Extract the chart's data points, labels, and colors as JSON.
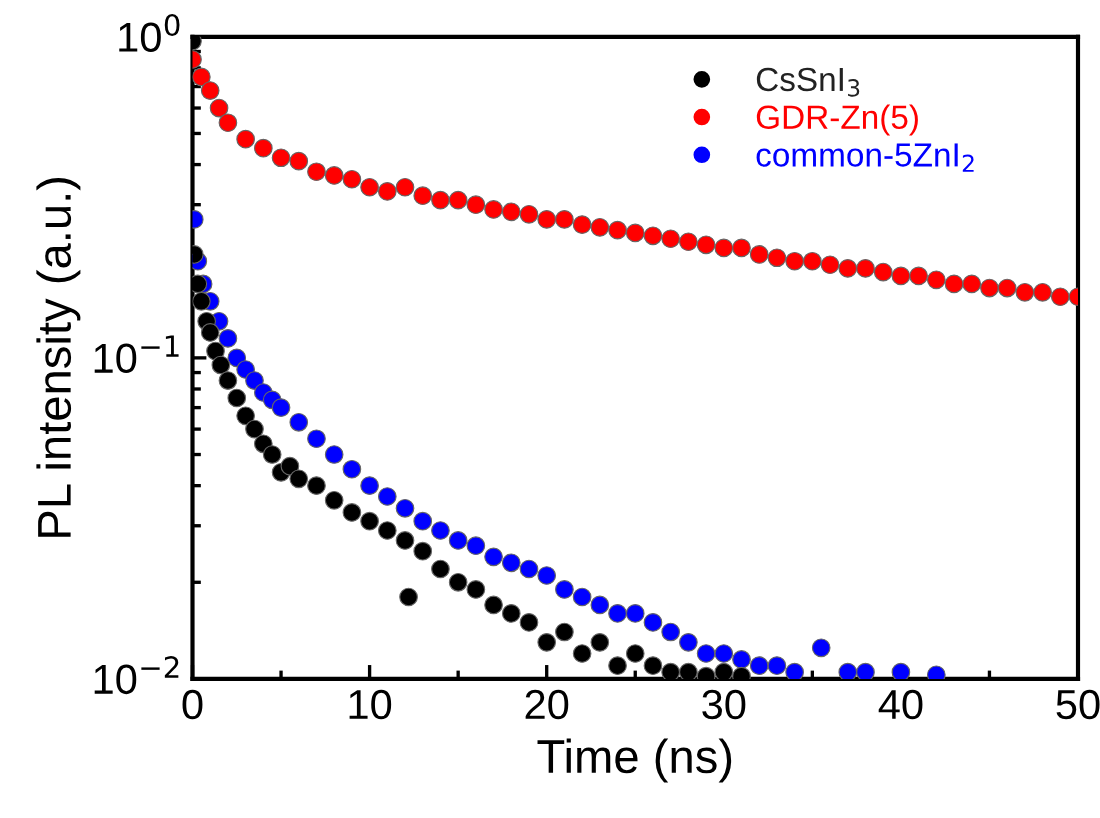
{
  "chart_data": {
    "type": "scatter",
    "xlabel": "Time (ns)",
    "ylabel": "PL intensity (a.u.)",
    "xlim": [
      0,
      50
    ],
    "xticks": [
      0,
      10,
      20,
      30,
      40,
      50
    ],
    "ylim": [
      0.01,
      1
    ],
    "yticks": [
      {
        "value": 0.01,
        "label": "10$^{−2}$"
      },
      {
        "value": 0.1,
        "label": "10$^{−1}$"
      },
      {
        "value": 1,
        "label": "10$^{0}$"
      }
    ],
    "log": "y",
    "grid": false,
    "legend": "top right",
    "marker": "circle",
    "series": [
      {
        "name": "CsSnI$_{3}$",
        "color": "#000000",
        "x": [
          0,
          0.1,
          0.3,
          0.5,
          0.8,
          1.0,
          1.3,
          1.6,
          2.0,
          2.5,
          3.0,
          3.5,
          4.0,
          4.5,
          5.0,
          5.5,
          6.0,
          7.0,
          8.0,
          9.0,
          10.0,
          11.0,
          12.0,
          12.2,
          13.0,
          14.0,
          15.0,
          16.0,
          17.0,
          18.0,
          19.0,
          20.0,
          21.0,
          22.0,
          23.0,
          24.0,
          25.0,
          26.0,
          27.0,
          28.0,
          29.0,
          30.0,
          31.0
        ],
        "values": [
          0.97,
          0.21,
          0.17,
          0.15,
          0.13,
          0.12,
          0.105,
          0.095,
          0.085,
          0.075,
          0.066,
          0.06,
          0.054,
          0.05,
          0.044,
          0.046,
          0.042,
          0.04,
          0.036,
          0.033,
          0.031,
          0.029,
          0.027,
          0.018,
          0.025,
          0.022,
          0.02,
          0.019,
          0.017,
          0.016,
          0.015,
          0.013,
          0.014,
          0.012,
          0.013,
          0.011,
          0.012,
          0.011,
          0.0105,
          0.0105,
          0.0102,
          0.0105,
          0.0102
        ]
      },
      {
        "name": "GDR-Zn(5)",
        "color": "#ff0000",
        "x": [
          0,
          0.5,
          1,
          1.5,
          2,
          3,
          4,
          5,
          6,
          7,
          8,
          9,
          10,
          11,
          12,
          13,
          14,
          15,
          16,
          17,
          18,
          19,
          20,
          21,
          22,
          23,
          24,
          25,
          26,
          27,
          28,
          29,
          30,
          31,
          32,
          33,
          34,
          35,
          36,
          37,
          38,
          39,
          40,
          41,
          42,
          43,
          44,
          45,
          46,
          47,
          48,
          49,
          50
        ],
        "values": [
          0.85,
          0.75,
          0.68,
          0.6,
          0.54,
          0.48,
          0.45,
          0.42,
          0.41,
          0.38,
          0.37,
          0.36,
          0.34,
          0.33,
          0.34,
          0.32,
          0.31,
          0.31,
          0.3,
          0.29,
          0.285,
          0.28,
          0.27,
          0.27,
          0.26,
          0.255,
          0.25,
          0.245,
          0.24,
          0.235,
          0.23,
          0.225,
          0.22,
          0.22,
          0.21,
          0.205,
          0.2,
          0.2,
          0.195,
          0.19,
          0.19,
          0.185,
          0.18,
          0.18,
          0.175,
          0.17,
          0.17,
          0.165,
          0.165,
          0.16,
          0.16,
          0.155,
          0.155
        ]
      },
      {
        "name": "common-5ZnI$_{2}$",
        "color": "#0000ff",
        "x": [
          0.1,
          0.3,
          0.6,
          1.0,
          1.5,
          2.0,
          2.5,
          3.0,
          3.5,
          4.0,
          4.5,
          5.0,
          6.0,
          7.0,
          8.0,
          9.0,
          10.0,
          11.0,
          12.0,
          13.0,
          14.0,
          15.0,
          16.0,
          17.0,
          18.0,
          19.0,
          20.0,
          21.0,
          22.0,
          23.0,
          24.0,
          25.0,
          26.0,
          27.0,
          28.0,
          29.0,
          30.0,
          31.0,
          32.0,
          33.0,
          34.0,
          35.5,
          37.0,
          38.0,
          40.0,
          42.0
        ],
        "values": [
          0.27,
          0.2,
          0.17,
          0.15,
          0.13,
          0.115,
          0.1,
          0.092,
          0.085,
          0.078,
          0.074,
          0.07,
          0.063,
          0.056,
          0.05,
          0.045,
          0.04,
          0.037,
          0.034,
          0.031,
          0.029,
          0.027,
          0.026,
          0.024,
          0.023,
          0.022,
          0.021,
          0.019,
          0.018,
          0.017,
          0.016,
          0.016,
          0.015,
          0.014,
          0.013,
          0.012,
          0.012,
          0.0115,
          0.011,
          0.011,
          0.0105,
          0.0125,
          0.0105,
          0.0105,
          0.0105,
          0.0103
        ]
      }
    ]
  }
}
